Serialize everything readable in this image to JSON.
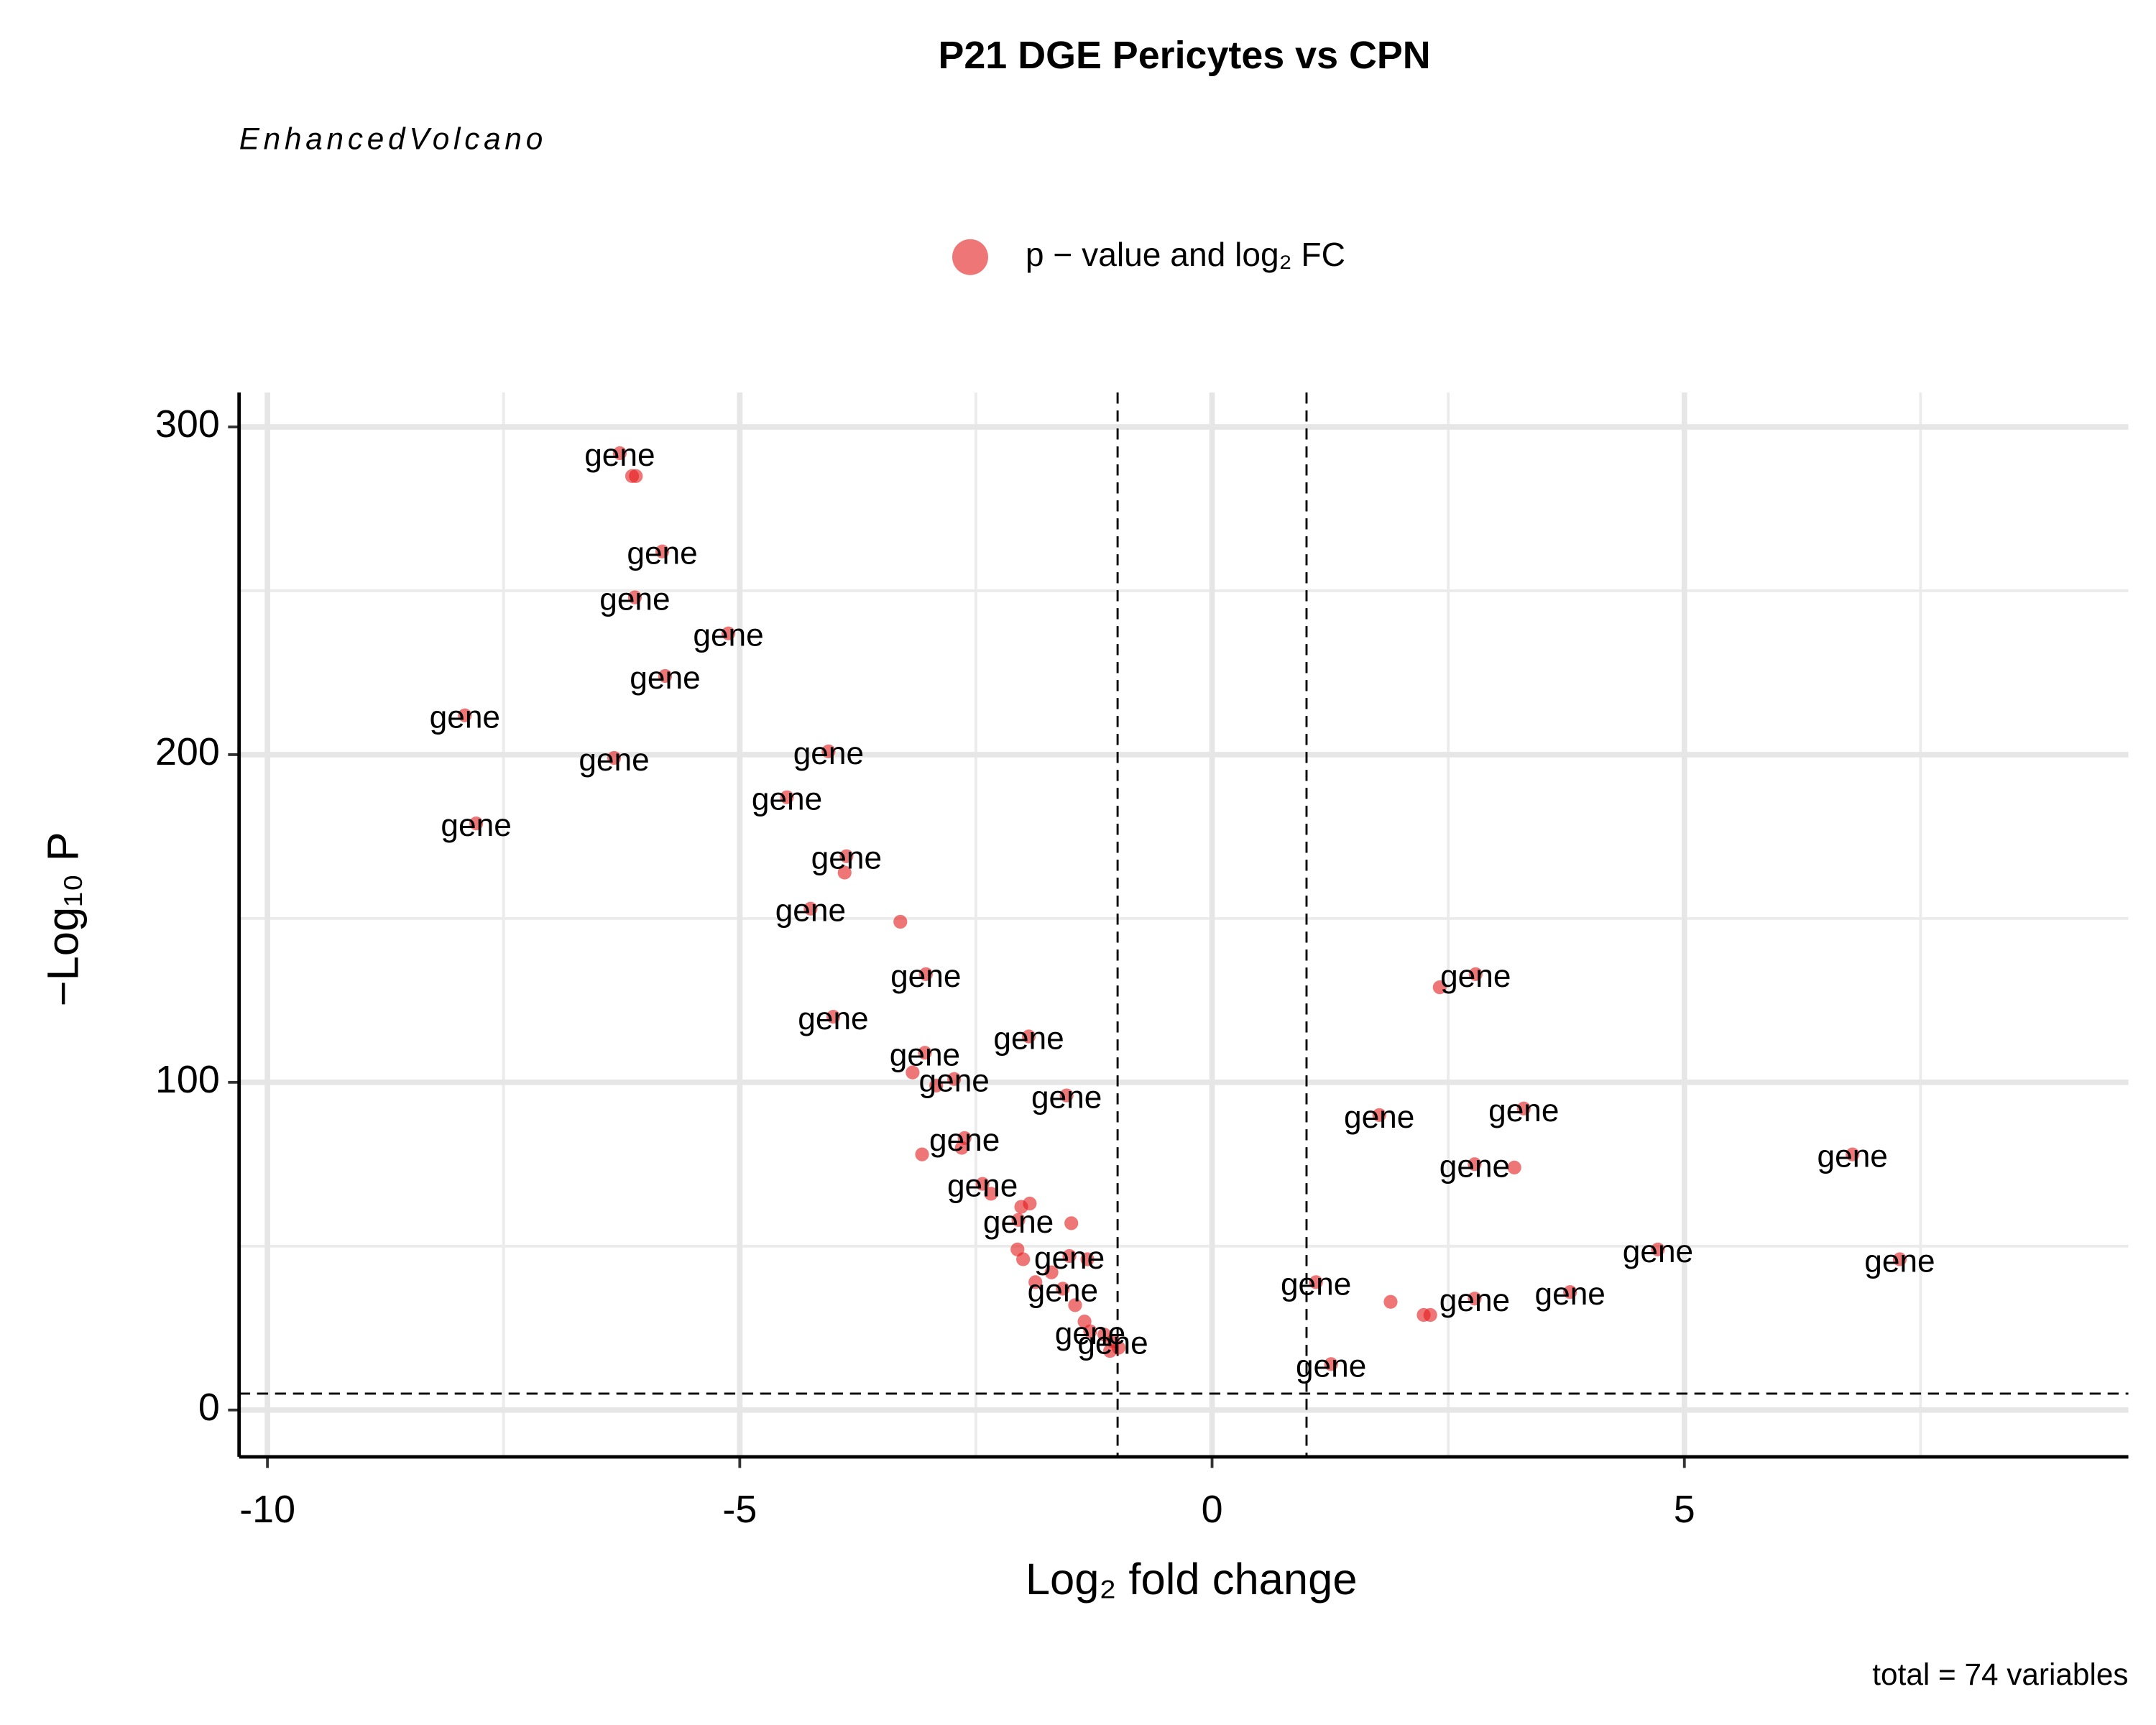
{
  "chart_data": {
    "type": "scatter",
    "title": "P21 DGE Pericytes vs CPN",
    "subtitle": "EnhancedVolcano",
    "caption": "total = 74 variables",
    "xlabel": "Log₂ fold change",
    "ylabel": "−Log₁₀ P",
    "legend": "top",
    "grid": true,
    "xlim": [
      -10.3,
      9.7
    ],
    "ylim": [
      -14.3,
      310.5
    ],
    "xticks": [
      -10,
      -5,
      0,
      5
    ],
    "yticks": [
      0,
      100,
      200,
      300
    ],
    "minor_xticks": [
      -7.5,
      -2.5,
      2.5,
      7.5
    ],
    "minor_yticks": [
      50,
      150,
      250
    ],
    "vlines": [
      -1,
      1
    ],
    "hlines": [
      5
    ],
    "series": [
      {
        "name": "p − value and log₂ FC",
        "color": "#e41a1c",
        "x": [
          -6.27,
          -6.14,
          -6.1,
          -5.82,
          -6.11,
          -5.12,
          -5.79,
          -7.91,
          -6.33,
          -4.06,
          -4.5,
          -7.79,
          -3.87,
          -3.89,
          -4.25,
          -3.3,
          -3.03,
          -4.01,
          -3.04,
          -1.94,
          -3.17,
          -2.73,
          -2.92,
          -1.54,
          -2.62,
          -3.07,
          -2.65,
          -2.43,
          -2.34,
          -2.02,
          -1.93,
          -2.05,
          -1.49,
          -2.06,
          -2.0,
          -1.51,
          -1.32,
          -1.7,
          -1.87,
          -1.58,
          -1.45,
          -1.35,
          -1.29,
          -1.14,
          -1.05,
          -0.99,
          -1.08,
          2.79,
          2.41,
          1.77,
          3.3,
          2.78,
          3.2,
          6.78,
          4.72,
          7.28,
          1.1,
          1.89,
          2.24,
          2.31,
          2.78,
          3.79,
          1.26
        ],
        "values": [
          292,
          285,
          285,
          262,
          248,
          237,
          224,
          212,
          199,
          201,
          187,
          179,
          169,
          164,
          153,
          149,
          133,
          120,
          109,
          114,
          103,
          101,
          99,
          96,
          83,
          78,
          80,
          69,
          66,
          62,
          63,
          58,
          57,
          49,
          46,
          47,
          46,
          42,
          39,
          37,
          32,
          27,
          24,
          23,
          21,
          19,
          18,
          133,
          129,
          90,
          92,
          75,
          74,
          78,
          49,
          46,
          39,
          33,
          29,
          29,
          34,
          36,
          14
        ],
        "labels": [
          "gene",
          null,
          null,
          "gene",
          "gene",
          "gene",
          "gene",
          "gene",
          "gene",
          "gene",
          "gene",
          "gene",
          "gene",
          null,
          "gene",
          null,
          "gene",
          "gene",
          "gene",
          "gene",
          null,
          "gene",
          null,
          "gene",
          "gene",
          null,
          null,
          "gene",
          null,
          null,
          null,
          "gene",
          null,
          null,
          null,
          "gene",
          null,
          null,
          null,
          "gene",
          null,
          null,
          "gene",
          null,
          "gene",
          null,
          null,
          "gene",
          null,
          "gene",
          "gene",
          "gene",
          null,
          "gene",
          "gene",
          "gene",
          "gene",
          null,
          null,
          null,
          "gene",
          "gene",
          "gene"
        ]
      }
    ]
  }
}
